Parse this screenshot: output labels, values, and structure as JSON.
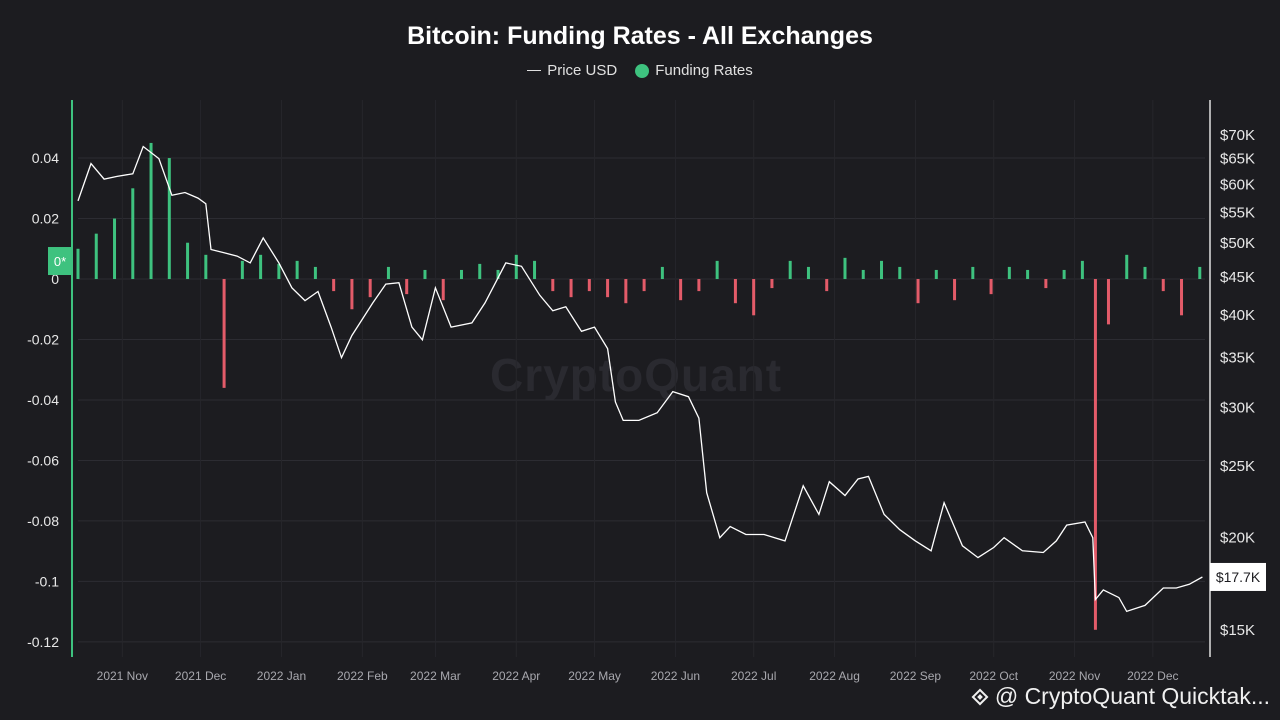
{
  "chart_data": {
    "type": "bar+line",
    "title": "Bitcoin: Funding Rates - All Exchanges",
    "legend": [
      "Price USD",
      "Funding Rates"
    ],
    "left_axis": {
      "ticks": [
        "0.04",
        "0.02",
        "0",
        "-0.02",
        "-0.04",
        "-0.06",
        "-0.08",
        "-0.1",
        "-0.12"
      ],
      "tick_values": [
        0.04,
        0.02,
        0,
        -0.02,
        -0.04,
        -0.06,
        -0.08,
        -0.1,
        -0.12
      ],
      "range": [
        -0.125,
        0.0592
      ],
      "zero_marker": "0*"
    },
    "right_axis": {
      "ticks": [
        "$70K",
        "$65K",
        "$60K",
        "$55K",
        "$50K",
        "$45K",
        "$40K",
        "$35K",
        "$30K",
        "$25K",
        "$20K",
        "$15K"
      ],
      "tick_values": [
        70000,
        65000,
        60000,
        55000,
        50000,
        45000,
        40000,
        35000,
        30000,
        25000,
        20000,
        15000
      ],
      "scale": "log",
      "current_price_label": "$17.7K",
      "current_price": 17700
    },
    "x_axis": {
      "ticks": [
        "2021 Nov",
        "2021 Dec",
        "2022 Jan",
        "2022 Feb",
        "2022 Mar",
        "2022 Apr",
        "2022 May",
        "2022 Jun",
        "2022 Jul",
        "2022 Aug",
        "2022 Sep",
        "2022 Oct",
        "2022 Nov",
        "2022 Dec"
      ],
      "tick_values": [
        "2021-11-01",
        "2021-12-01",
        "2022-01-01",
        "2022-02-01",
        "2022-03-01",
        "2022-04-01",
        "2022-05-01",
        "2022-06-01",
        "2022-07-01",
        "2022-08-01",
        "2022-09-01",
        "2022-10-01",
        "2022-11-01",
        "2022-12-01"
      ],
      "range": [
        "2021-10-15",
        "2022-12-21"
      ]
    },
    "series": [
      {
        "name": "Price USD",
        "type": "line",
        "color": "#ffffff",
        "x": [
          "2021-10-15",
          "2021-10-20",
          "2021-10-25",
          "2021-10-30",
          "2021-11-05",
          "2021-11-09",
          "2021-11-15",
          "2021-11-20",
          "2021-11-25",
          "2021-11-30",
          "2021-12-03",
          "2021-12-05",
          "2021-12-10",
          "2021-12-15",
          "2021-12-20",
          "2021-12-25",
          "2021-12-31",
          "2022-01-05",
          "2022-01-10",
          "2022-01-15",
          "2022-01-20",
          "2022-01-24",
          "2022-01-28",
          "2022-02-05",
          "2022-02-10",
          "2022-02-15",
          "2022-02-20",
          "2022-02-24",
          "2022-03-01",
          "2022-03-07",
          "2022-03-15",
          "2022-03-20",
          "2022-03-28",
          "2022-04-03",
          "2022-04-10",
          "2022-04-15",
          "2022-04-20",
          "2022-04-26",
          "2022-05-01",
          "2022-05-06",
          "2022-05-09",
          "2022-05-12",
          "2022-05-18",
          "2022-05-25",
          "2022-05-31",
          "2022-06-06",
          "2022-06-10",
          "2022-06-13",
          "2022-06-18",
          "2022-06-22",
          "2022-06-28",
          "2022-07-05",
          "2022-07-13",
          "2022-07-20",
          "2022-07-26",
          "2022-07-30",
          "2022-08-05",
          "2022-08-10",
          "2022-08-14",
          "2022-08-20",
          "2022-08-26",
          "2022-09-01",
          "2022-09-07",
          "2022-09-12",
          "2022-09-19",
          "2022-09-25",
          "2022-10-01",
          "2022-10-05",
          "2022-10-12",
          "2022-10-20",
          "2022-10-25",
          "2022-10-29",
          "2022-11-05",
          "2022-11-08",
          "2022-11-09",
          "2022-11-12",
          "2022-11-18",
          "2022-11-21",
          "2022-11-28",
          "2022-12-05",
          "2022-12-10",
          "2022-12-15",
          "2022-12-20"
        ],
        "values": [
          57000,
          64000,
          61000,
          61500,
          62000,
          67500,
          65000,
          58000,
          58500,
          57500,
          56500,
          49000,
          48500,
          48000,
          47000,
          50800,
          47000,
          43500,
          41800,
          43000,
          38500,
          35000,
          37500,
          41500,
          44000,
          44200,
          38500,
          37000,
          43500,
          38500,
          39000,
          41500,
          47000,
          46500,
          42500,
          40500,
          41000,
          38000,
          38500,
          36000,
          30500,
          28800,
          28800,
          29500,
          31500,
          31000,
          29000,
          23000,
          20000,
          20700,
          20200,
          20200,
          19800,
          23500,
          21500,
          23800,
          22800,
          24000,
          24200,
          21500,
          20500,
          19800,
          19200,
          22300,
          19500,
          18800,
          19400,
          20000,
          19200,
          19100,
          19800,
          20800,
          21000,
          20000,
          16500,
          17000,
          16600,
          15900,
          16200,
          17100,
          17100,
          17300,
          17700
        ]
      },
      {
        "name": "Funding Rates",
        "type": "bar",
        "positive_color": "#3ec27f",
        "negative_color": "#e35b69",
        "x": [
          "2021-10-15",
          "2021-10-22",
          "2021-10-29",
          "2021-11-05",
          "2021-11-12",
          "2021-11-19",
          "2021-11-26",
          "2021-12-03",
          "2021-12-10",
          "2021-12-17",
          "2021-12-24",
          "2021-12-31",
          "2022-01-07",
          "2022-01-14",
          "2022-01-21",
          "2022-01-28",
          "2022-02-04",
          "2022-02-11",
          "2022-02-18",
          "2022-02-25",
          "2022-03-04",
          "2022-03-11",
          "2022-03-18",
          "2022-03-25",
          "2022-04-01",
          "2022-04-08",
          "2022-04-15",
          "2022-04-22",
          "2022-04-29",
          "2022-05-06",
          "2022-05-13",
          "2022-05-20",
          "2022-05-27",
          "2022-06-03",
          "2022-06-10",
          "2022-06-17",
          "2022-06-24",
          "2022-07-01",
          "2022-07-08",
          "2022-07-15",
          "2022-07-22",
          "2022-07-29",
          "2022-08-05",
          "2022-08-12",
          "2022-08-19",
          "2022-08-26",
          "2022-09-02",
          "2022-09-09",
          "2022-09-16",
          "2022-09-23",
          "2022-09-30",
          "2022-10-07",
          "2022-10-14",
          "2022-10-21",
          "2022-10-28",
          "2022-11-04",
          "2022-11-09",
          "2022-11-14",
          "2022-11-21",
          "2022-11-28",
          "2022-12-05",
          "2022-12-12",
          "2022-12-19"
        ],
        "values": [
          0.01,
          0.015,
          0.02,
          0.03,
          0.045,
          0.04,
          0.012,
          0.008,
          -0.036,
          0.006,
          0.008,
          0.005,
          0.006,
          0.004,
          -0.004,
          -0.01,
          -0.006,
          0.004,
          -0.005,
          0.003,
          -0.007,
          0.003,
          0.005,
          0.003,
          0.008,
          0.006,
          -0.004,
          -0.006,
          -0.004,
          -0.006,
          -0.008,
          -0.004,
          0.004,
          -0.007,
          -0.004,
          0.006,
          -0.008,
          -0.012,
          -0.003,
          0.006,
          0.004,
          -0.004,
          0.007,
          0.003,
          0.006,
          0.004,
          -0.008,
          0.003,
          -0.007,
          0.004,
          -0.005,
          0.004,
          0.003,
          -0.003,
          0.003,
          0.006,
          -0.116,
          -0.015,
          0.008,
          0.004,
          -0.004,
          -0.012,
          0.004
        ]
      }
    ]
  },
  "footer": {
    "text": "@ CryptoQuant Quicktak..."
  },
  "watermark": "CryptoQuant"
}
